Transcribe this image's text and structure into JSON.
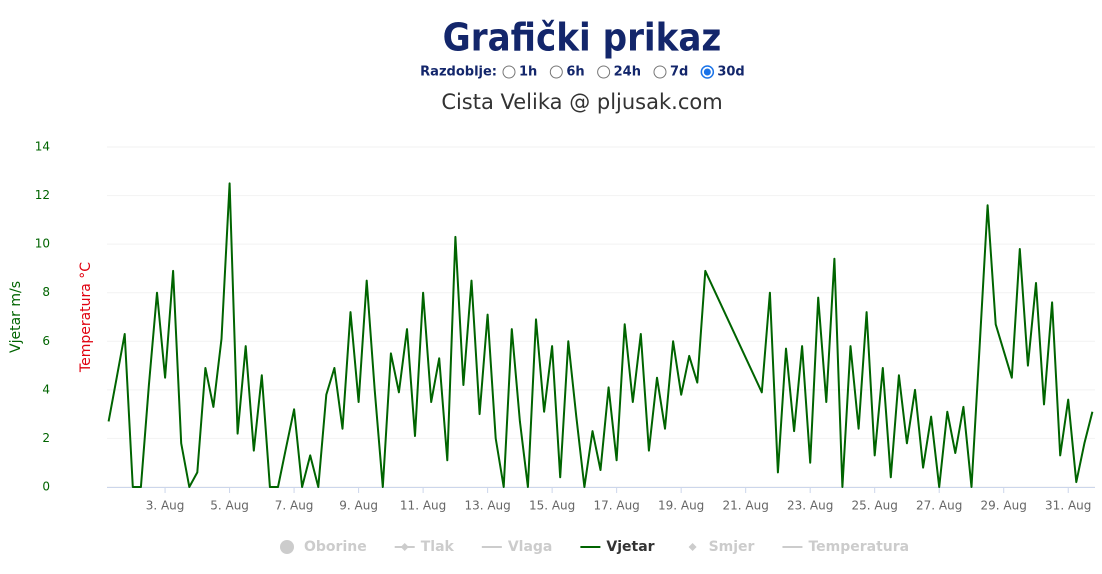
{
  "header": {
    "title": "Grafički prikaz",
    "period_label": "Razdoblje:",
    "period_options": [
      "1h",
      "6h",
      "24h",
      "7d",
      "30d"
    ],
    "selected_period": 4
  },
  "chart_data": {
    "type": "line",
    "title": "Cista Velika @ pljusak.com",
    "ylabel": "Vjetar m/s",
    "ylabel_color": "#006400",
    "temperature_label": "Temperatura °C",
    "temperature_color": "#e0000f",
    "xlim": [
      1.2,
      31.83
    ],
    "ylim": [
      0,
      14
    ],
    "yticks": [
      0,
      2,
      4,
      6,
      8,
      10,
      12,
      14
    ],
    "xticks": [
      {
        "value": 3,
        "label": "3. Aug"
      },
      {
        "value": 5,
        "label": "5. Aug"
      },
      {
        "value": 7,
        "label": "7. Aug"
      },
      {
        "value": 9,
        "label": "9. Aug"
      },
      {
        "value": 11,
        "label": "11. Aug"
      },
      {
        "value": 13,
        "label": "13. Aug"
      },
      {
        "value": 15,
        "label": "15. Aug"
      },
      {
        "value": 17,
        "label": "17. Aug"
      },
      {
        "value": 19,
        "label": "19. Aug"
      },
      {
        "value": 21,
        "label": "21. Aug"
      },
      {
        "value": 23,
        "label": "23. Aug"
      },
      {
        "value": 25,
        "label": "25. Aug"
      },
      {
        "value": 27,
        "label": "27. Aug"
      },
      {
        "value": 29,
        "label": "29. Aug"
      },
      {
        "value": 31,
        "label": "31. Aug"
      }
    ],
    "grid": true,
    "x": [
      1.25,
      1.5,
      1.75,
      2.0,
      2.25,
      2.5,
      2.75,
      3.0,
      3.25,
      3.5,
      3.75,
      4.0,
      4.25,
      4.5,
      4.75,
      5.0,
      5.25,
      5.5,
      5.75,
      6.0,
      6.25,
      6.5,
      6.75,
      7.0,
      7.25,
      7.5,
      7.75,
      8.0,
      8.25,
      8.5,
      8.75,
      9.0,
      9.25,
      9.5,
      9.75,
      10.0,
      10.25,
      10.5,
      10.75,
      11.0,
      11.25,
      11.5,
      11.75,
      12.0,
      12.25,
      12.5,
      12.75,
      13.0,
      13.25,
      13.5,
      13.75,
      14.0,
      14.25,
      14.5,
      14.75,
      15.0,
      15.25,
      15.5,
      15.75,
      16.0,
      16.25,
      16.5,
      16.75,
      17.0,
      17.25,
      17.5,
      17.75,
      18.0,
      18.25,
      18.5,
      18.75,
      19.0,
      19.25,
      19.5,
      19.75,
      21.5,
      21.75,
      22.0,
      22.25,
      22.5,
      22.75,
      23.0,
      23.25,
      23.5,
      23.75,
      24.0,
      24.25,
      24.5,
      24.75,
      25.0,
      25.25,
      25.5,
      25.75,
      26.0,
      26.25,
      26.5,
      26.75,
      27.0,
      27.25,
      27.5,
      27.75,
      28.0,
      28.25,
      28.5,
      28.75,
      29.25,
      29.5,
      29.75,
      30.0,
      30.25,
      30.5,
      30.75,
      31.0,
      31.25,
      31.5,
      31.75
    ],
    "series": [
      {
        "name": "Oborine",
        "symbol": "circle",
        "visible": false
      },
      {
        "name": "Tlak",
        "symbol": "diamond-line",
        "visible": false
      },
      {
        "name": "Vlaga",
        "symbol": "line",
        "visible": false
      },
      {
        "name": "Vjetar",
        "symbol": "line",
        "visible": true,
        "color": "#006400",
        "values": [
          2.7,
          4.5,
          6.3,
          0,
          0,
          4.2,
          8,
          4.5,
          8.9,
          1.8,
          0,
          0.6,
          4.9,
          3.3,
          6.1,
          12.5,
          2.2,
          5.8,
          1.5,
          4.6,
          0,
          0,
          1.6,
          3.2,
          0,
          1.3,
          0,
          3.8,
          4.9,
          2.4,
          7.2,
          3.5,
          8.5,
          4,
          0,
          5.5,
          3.9,
          6.5,
          2.1,
          8,
          3.5,
          5.3,
          1.1,
          10.3,
          4.2,
          8.5,
          3,
          7.1,
          2,
          0,
          6.5,
          2.7,
          0,
          6.9,
          3.1,
          5.8,
          0.4,
          6,
          2.9,
          0,
          2.3,
          0.7,
          4.1,
          1.1,
          6.7,
          3.5,
          6.3,
          1.5,
          4.5,
          2.4,
          6,
          3.8,
          5.4,
          4.3,
          8.9,
          3.9,
          8,
          0.6,
          5.7,
          2.3,
          5.8,
          1,
          7.8,
          3.5,
          9.4,
          0,
          5.8,
          2.4,
          7.2,
          1.3,
          4.9,
          0.4,
          4.6,
          1.8,
          4,
          0.8,
          2.9,
          0,
          3.1,
          1.4,
          3.3,
          0,
          5.7,
          11.6,
          6.7,
          4.5,
          9.8,
          5,
          8.4,
          3.4,
          7.6,
          1.3,
          3.6,
          0.2,
          1.8,
          3.1
        ]
      },
      {
        "name": "Smjer",
        "symbol": "diamond",
        "visible": false
      },
      {
        "name": "Temperatura",
        "symbol": "line",
        "visible": false
      }
    ]
  }
}
